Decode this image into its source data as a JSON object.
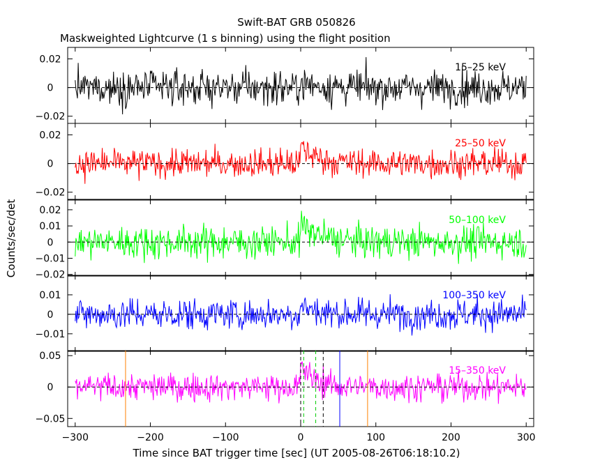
{
  "chart_data": {
    "type": "line",
    "title": "Swift-BAT GRB 050826",
    "subtitle": "Maskweighted Lightcurve (1 s binning) using the flight position",
    "xlabel": "Time since BAT trigger time [sec] (UT 2005-08-26T06:18:10.2)",
    "ylabel": "Counts/sec/det",
    "xlim": [
      -310,
      310
    ],
    "xticks": [
      -300,
      -200,
      -100,
      0,
      100,
      200,
      300
    ],
    "grid": false,
    "panels": [
      {
        "band": "15-25 keV",
        "band_label": "15–25 keV",
        "color": "#000000",
        "ylim": [
          -0.025,
          0.028
        ],
        "yticks": [
          -0.02,
          0,
          0.02
        ],
        "ytick_labels": [
          "−0.02",
          "0",
          "0.02"
        ],
        "noise_sigma": 0.006,
        "burst": {
          "start": 0,
          "peak": 0.003,
          "decay_s": 25
        }
      },
      {
        "band": "25-50 keV",
        "band_label": "25–50 keV",
        "color": "#ff0000",
        "ylim": [
          -0.025,
          0.028
        ],
        "yticks": [
          -0.02,
          0,
          0.02
        ],
        "ytick_labels": [
          "−0.02",
          "0",
          "0.02"
        ],
        "noise_sigma": 0.005,
        "burst": {
          "start": 0,
          "peak": 0.012,
          "decay_s": 22
        }
      },
      {
        "band": "50-100 keV",
        "band_label": "50–100 keV",
        "color": "#00ff00",
        "ylim": [
          -0.021,
          0.026
        ],
        "yticks": [
          -0.02,
          -0.01,
          0,
          0.01,
          0.02
        ],
        "ytick_labels": [
          "−0.02",
          "−0.01",
          "0",
          "0.01",
          "0.02"
        ],
        "noise_sigma": 0.005,
        "burst": {
          "start": 0,
          "peak": 0.011,
          "decay_s": 25
        }
      },
      {
        "band": "100-350 keV",
        "band_label": "100–350 keV",
        "color": "#0000ff",
        "ylim": [
          -0.019,
          0.02
        ],
        "yticks": [
          -0.01,
          0,
          0.01
        ],
        "ytick_labels": [
          "−0.01",
          "0",
          "0.01"
        ],
        "noise_sigma": 0.004,
        "burst": {
          "start": 0,
          "peak": 0.005,
          "decay_s": 20
        }
      },
      {
        "band": "15-350 keV",
        "band_label": "15–350 keV",
        "color": "#ff00ff",
        "ylim": [
          -0.063,
          0.058
        ],
        "yticks": [
          -0.05,
          0,
          0.05
        ],
        "ytick_labels": [
          "−0.05",
          "0",
          "0.05"
        ],
        "noise_sigma": 0.011,
        "burst": {
          "start": 0,
          "peak": 0.035,
          "decay_s": 18
        }
      }
    ],
    "time_markers": [
      {
        "t": -233,
        "color": "#ff8000",
        "style": "solid"
      },
      {
        "t": 89,
        "color": "#ff8000",
        "style": "solid"
      },
      {
        "t": 0,
        "color": "#000000",
        "style": "dashed"
      },
      {
        "t": 30,
        "color": "#000000",
        "style": "dashed"
      },
      {
        "t": 4,
        "color": "#00cc00",
        "style": "dashed"
      },
      {
        "t": 20,
        "color": "#00cc00",
        "style": "dashed"
      },
      {
        "t": 52,
        "color": "#0000ff",
        "style": "solid"
      }
    ]
  }
}
